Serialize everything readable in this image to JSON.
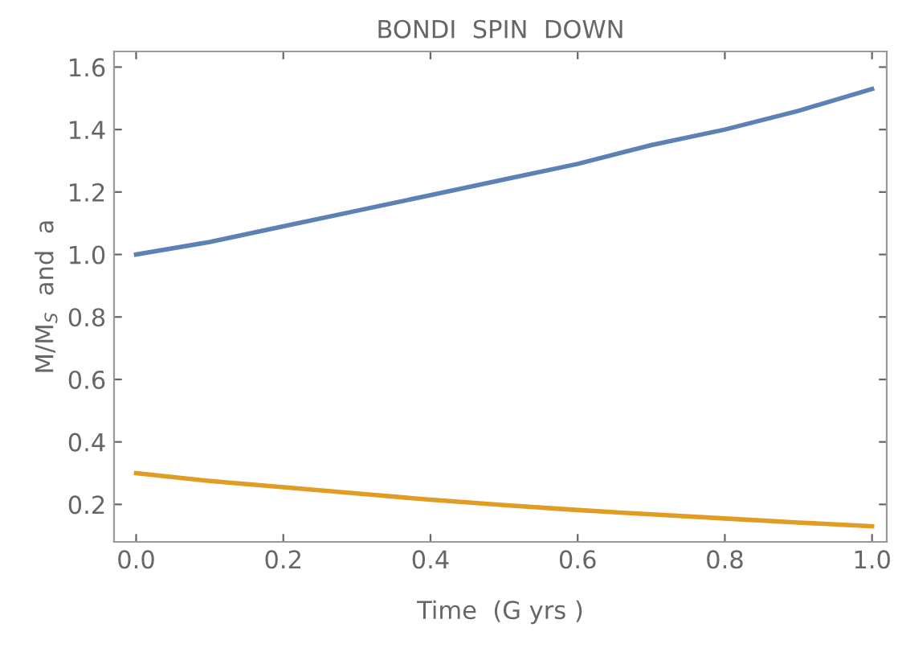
{
  "chart_data": {
    "type": "line",
    "title": "BONDI  SPIN  DOWN",
    "xlabel": "Time  (G yrs )",
    "ylabel": "M/M$_{S}$  and  a",
    "x": [
      0,
      0.1,
      0.2,
      0.3,
      0.4,
      0.5,
      0.6,
      0.7,
      0.8,
      0.9,
      1.0
    ],
    "series": [
      {
        "color": "#5e81b5",
        "values": [
          1.0,
          1.04,
          1.09,
          1.14,
          1.19,
          1.24,
          1.29,
          1.35,
          1.4,
          1.46,
          1.53
        ]
      },
      {
        "color": "#e19c24",
        "values": [
          0.3,
          0.275,
          0.255,
          0.235,
          0.215,
          0.198,
          0.182,
          0.168,
          0.155,
          0.142,
          0.13
        ]
      }
    ],
    "xlim": [
      -0.03,
      1.02
    ],
    "ylim": [
      0.08,
      1.65
    ],
    "xticks": [
      {
        "value": 0,
        "label": "0.0"
      },
      0.2,
      0.4,
      0.6,
      0.8,
      {
        "value": 1,
        "label": "1.0"
      }
    ],
    "yticks": [
      0.2,
      0.4,
      0.6,
      0.8,
      {
        "value": 1,
        "label": "1.0"
      },
      1.2,
      1.4,
      1.6
    ],
    "grid": false,
    "marker": "none",
    "line_style": "solid"
  }
}
